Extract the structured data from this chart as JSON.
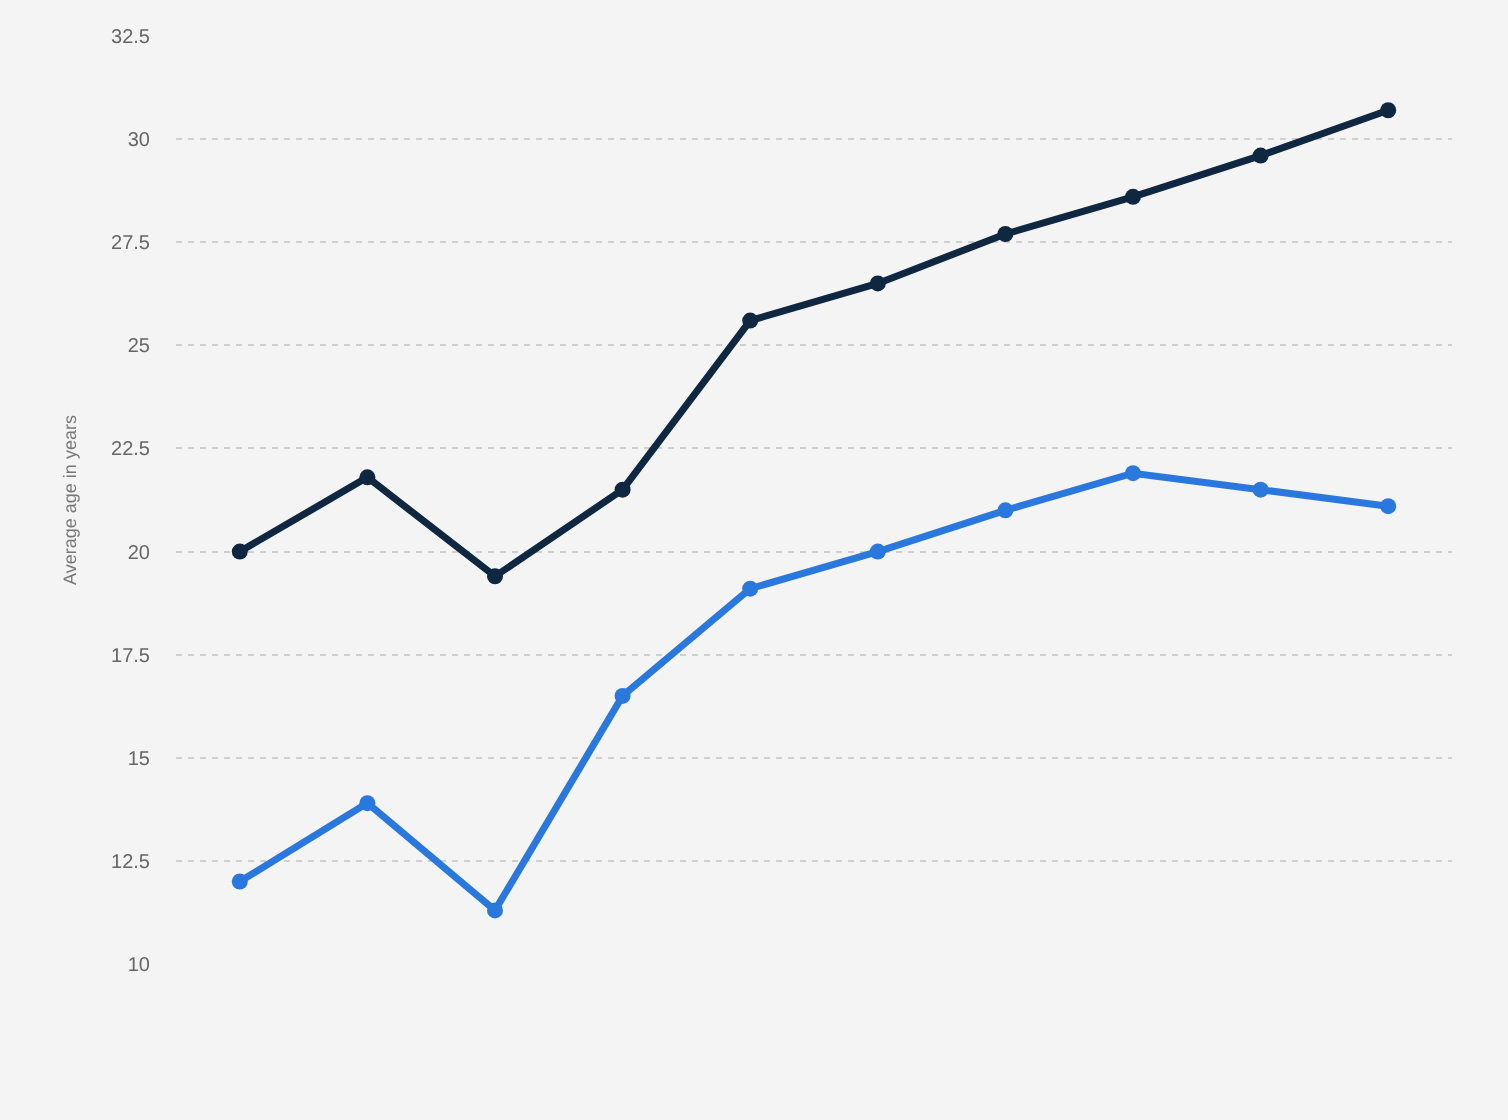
{
  "chart_data": {
    "type": "line",
    "ylabel": "Average age in years",
    "categories": [
      null,
      null,
      null,
      null,
      null,
      null,
      null,
      null,
      null,
      null
    ],
    "series": [
      {
        "color": "#0f2741",
        "values": [
          20,
          21.8,
          19.4,
          21.5,
          25.6,
          26.5,
          27.7,
          28.6,
          29.6,
          30.7
        ]
      },
      {
        "color": "#2a78de",
        "values": [
          12,
          13.9,
          11.3,
          16.5,
          19.1,
          20,
          21,
          21.9,
          21.5,
          21.1
        ]
      }
    ],
    "ylim": [
      10,
      32.5
    ],
    "yticks": [
      10,
      12.5,
      15,
      17.5,
      20,
      22.5,
      25,
      27.5,
      30,
      32.5
    ],
    "grid": "y",
    "legend": false,
    "marker": "circle",
    "line_style": "solid",
    "tick_labels": "y"
  }
}
